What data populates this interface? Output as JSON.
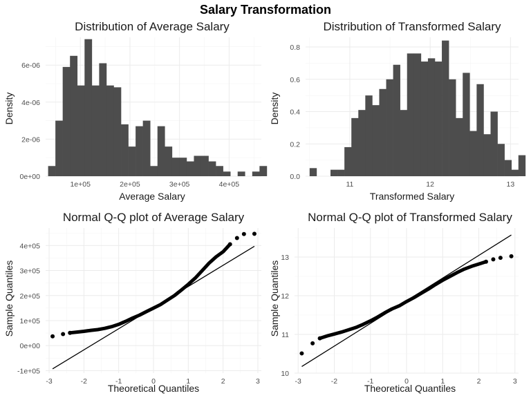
{
  "figure_title": "Salary Transformation",
  "chart_data": [
    {
      "type": "bar",
      "title": "Distribution of Average Salary",
      "xlabel": "Average Salary",
      "ylabel": "Density",
      "xlim": [
        30000,
        465000
      ],
      "ylim": [
        0,
        7.5e-06
      ],
      "x_ticks": [
        100000,
        200000,
        300000,
        400000
      ],
      "x_tick_labels": [
        "1e+05",
        "2e+05",
        "3e+05",
        "4e+05"
      ],
      "y_ticks": [
        0,
        2e-06,
        4e-06,
        6e-06
      ],
      "y_tick_labels": [
        "0e+00",
        "2e-06",
        "4e-06",
        "6e-06"
      ],
      "bin_start": 35000,
      "bin_width": 14700,
      "values": [
        5.5e-07,
        3e-06,
        5.9e-06,
        6.5e-06,
        4.9e-06,
        7.4e-06,
        4.9e-06,
        6.1e-06,
        4.9e-06,
        4.8e-06,
        2.8e-06,
        1.6e-06,
        2.7e-06,
        3e-06,
        5.5e-07,
        2.7e-06,
        1.6e-06,
        1e-06,
        1e-06,
        8e-07,
        1.1e-06,
        1.1e-06,
        8e-07,
        5.5e-07,
        2.5e-07,
        0,
        2.5e-07,
        0,
        2.5e-07,
        5.5e-07
      ],
      "color": "#4d4d4d"
    },
    {
      "type": "bar",
      "title": "Distribution of Transformed Salary",
      "xlabel": "Transformed Salary",
      "ylabel": "Density",
      "xlim": [
        10.45,
        13.1
      ],
      "ylim": [
        0,
        0.86
      ],
      "x_ticks": [
        11,
        12,
        13
      ],
      "x_tick_labels": [
        "11",
        "12",
        "13"
      ],
      "y_ticks": [
        0,
        0.2,
        0.4,
        0.6,
        0.8
      ],
      "y_tick_labels": [
        "0.0",
        "0.2",
        "0.4",
        "0.6",
        "0.8"
      ],
      "bin_start": 10.5,
      "bin_width": 0.0866,
      "values": [
        0.05,
        0,
        0,
        0.04,
        0.04,
        0.18,
        0.36,
        0.41,
        0.5,
        0.44,
        0.54,
        0.6,
        0.69,
        0.41,
        0.76,
        0.76,
        0.71,
        0.73,
        0.71,
        0.84,
        0.6,
        0.36,
        0.64,
        0.28,
        0.57,
        0.26,
        0.4,
        0.2,
        0.1,
        0.04,
        0.13
      ],
      "color": "#4d4d4d"
    },
    {
      "type": "scatter",
      "title": "Normal Q-Q plot of Average Salary",
      "xlabel": "Theoretical Quantiles",
      "ylabel": "Sample Quantiles",
      "xlim": [
        -3.1,
        3.1
      ],
      "ylim": [
        -110000,
        470000
      ],
      "x_ticks": [
        -3,
        -2,
        -1,
        0,
        1,
        2,
        3
      ],
      "x_tick_labels": [
        "-3",
        "-2",
        "-1",
        "0",
        "1",
        "2",
        "3"
      ],
      "y_ticks": [
        -100000,
        0,
        100000,
        200000,
        300000,
        400000
      ],
      "y_tick_labels": [
        "-1e+05",
        "0e+00",
        "1e+05",
        "2e+05",
        "3e+05",
        "4e+05"
      ],
      "qq_curve": [
        [
          -2.9,
          37000
        ],
        [
          -2.6,
          46000
        ],
        [
          -2.4,
          51000
        ],
        [
          -2.2,
          54000
        ],
        [
          -2.0,
          57000
        ],
        [
          -1.8,
          61000
        ],
        [
          -1.6,
          64000
        ],
        [
          -1.4,
          69000
        ],
        [
          -1.2,
          76000
        ],
        [
          -1.0,
          85000
        ],
        [
          -0.8,
          97000
        ],
        [
          -0.6,
          110000
        ],
        [
          -0.4,
          122000
        ],
        [
          -0.2,
          136000
        ],
        [
          0.0,
          150000
        ],
        [
          0.2,
          164000
        ],
        [
          0.4,
          182000
        ],
        [
          0.6,
          200000
        ],
        [
          0.8,
          222000
        ],
        [
          1.0,
          245000
        ],
        [
          1.2,
          270000
        ],
        [
          1.4,
          300000
        ],
        [
          1.6,
          330000
        ],
        [
          1.8,
          355000
        ],
        [
          2.0,
          375000
        ],
        [
          2.2,
          405000
        ],
        [
          2.4,
          430000
        ],
        [
          2.6,
          446000
        ],
        [
          2.9,
          447000
        ]
      ],
      "reference_line": [
        [
          -2.9,
          -93000
        ],
        [
          2.9,
          397000
        ]
      ],
      "point_color": "#000000"
    },
    {
      "type": "scatter",
      "title": "Normal Q-Q plot of Transformed Salary",
      "xlabel": "Theoretical Quantiles",
      "ylabel": "Sample Quantiles",
      "xlim": [
        -3.1,
        3.1
      ],
      "ylim": [
        10.0,
        13.75
      ],
      "x_ticks": [
        -3,
        -2,
        -1,
        0,
        1,
        2,
        3
      ],
      "x_tick_labels": [
        "-3",
        "-2",
        "-1",
        "0",
        "1",
        "2",
        "3"
      ],
      "y_ticks": [
        10,
        11,
        12,
        13
      ],
      "y_tick_labels": [
        "10",
        "11",
        "12",
        "13"
      ],
      "qq_curve": [
        [
          -2.9,
          10.51
        ],
        [
          -2.6,
          10.77
        ],
        [
          -2.4,
          10.9
        ],
        [
          -2.2,
          10.96
        ],
        [
          -2.0,
          11.01
        ],
        [
          -1.8,
          11.06
        ],
        [
          -1.6,
          11.12
        ],
        [
          -1.4,
          11.18
        ],
        [
          -1.2,
          11.26
        ],
        [
          -1.0,
          11.35
        ],
        [
          -0.8,
          11.45
        ],
        [
          -0.6,
          11.56
        ],
        [
          -0.4,
          11.66
        ],
        [
          -0.2,
          11.74
        ],
        [
          0.0,
          11.85
        ],
        [
          0.2,
          11.95
        ],
        [
          0.4,
          12.06
        ],
        [
          0.6,
          12.17
        ],
        [
          0.8,
          12.29
        ],
        [
          1.0,
          12.4
        ],
        [
          1.2,
          12.5
        ],
        [
          1.4,
          12.6
        ],
        [
          1.6,
          12.69
        ],
        [
          1.8,
          12.76
        ],
        [
          2.0,
          12.82
        ],
        [
          2.2,
          12.88
        ],
        [
          2.4,
          12.94
        ],
        [
          2.6,
          12.98
        ],
        [
          2.9,
          13.02
        ]
      ],
      "reference_line": [
        [
          -2.9,
          10.17
        ],
        [
          2.9,
          13.57
        ]
      ],
      "point_color": "#000000"
    }
  ]
}
